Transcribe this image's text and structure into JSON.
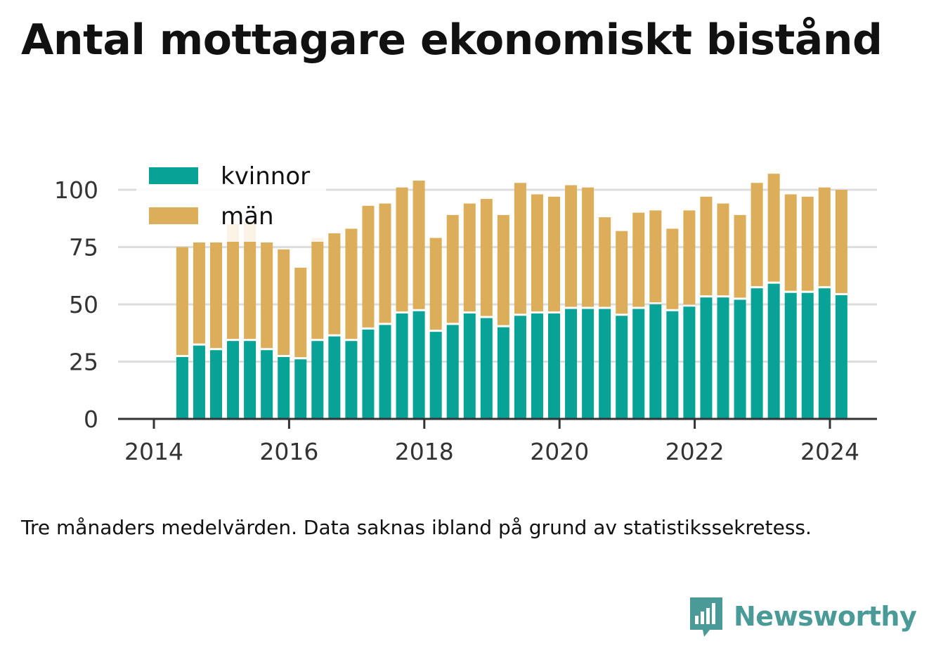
{
  "title": "Antal mottagare ekonomiskt bistånd",
  "footnote": "Tre månaders medelvärden. Data saknas ibland på grund av statistikssekretess.",
  "brand": {
    "name": "Newsworthy",
    "icon": "bar-chart-speech-bubble-icon"
  },
  "colors": {
    "kvinnor": "#06a396",
    "man": "#dcae5a",
    "axis": "#333333",
    "grid": "#dddddd",
    "tick_text": "#333333",
    "brand": "#4a9a98"
  },
  "chart_data": {
    "type": "bar",
    "stacked": true,
    "title": "Antal mottagare ekonomiskt bistånd",
    "xlabel": "",
    "ylabel": "",
    "ylim": [
      0,
      110
    ],
    "yticks": [
      0,
      25,
      50,
      75,
      100
    ],
    "xticks": [
      2014,
      2016,
      2018,
      2020,
      2022,
      2024
    ],
    "grid": true,
    "legend": "top-left",
    "x": [
      2014.42,
      2014.67,
      2014.92,
      2015.17,
      2015.42,
      2015.67,
      2015.92,
      2016.17,
      2016.42,
      2016.67,
      2016.92,
      2017.17,
      2017.42,
      2017.67,
      2017.92,
      2018.17,
      2018.42,
      2018.67,
      2018.92,
      2019.17,
      2019.42,
      2019.67,
      2019.92,
      2020.17,
      2020.42,
      2020.67,
      2020.92,
      2021.17,
      2021.42,
      2021.67,
      2021.92,
      2022.17,
      2022.42,
      2022.67,
      2022.92,
      2023.17,
      2023.42,
      2023.67,
      2023.92,
      2024.17
    ],
    "series": [
      {
        "name": "kvinnor",
        "values": [
          27,
          32,
          30,
          34,
          34,
          30,
          27,
          26,
          34,
          36,
          34,
          39,
          41,
          46,
          47,
          38,
          41,
          46,
          44,
          40,
          45,
          46,
          46,
          48,
          48,
          48,
          45,
          48,
          50,
          47,
          49,
          53,
          53,
          52,
          57,
          59,
          55,
          55,
          57,
          54
        ]
      },
      {
        "name": "män",
        "values": [
          48,
          45,
          47,
          51,
          52,
          47,
          47,
          40,
          45,
          45,
          49,
          54,
          53,
          55,
          57,
          41,
          48,
          48,
          52,
          49,
          58,
          52,
          51,
          54,
          53,
          40,
          37,
          42,
          41,
          36,
          42,
          44,
          41,
          37,
          46,
          48,
          43,
          42,
          44,
          46
        ]
      }
    ]
  }
}
